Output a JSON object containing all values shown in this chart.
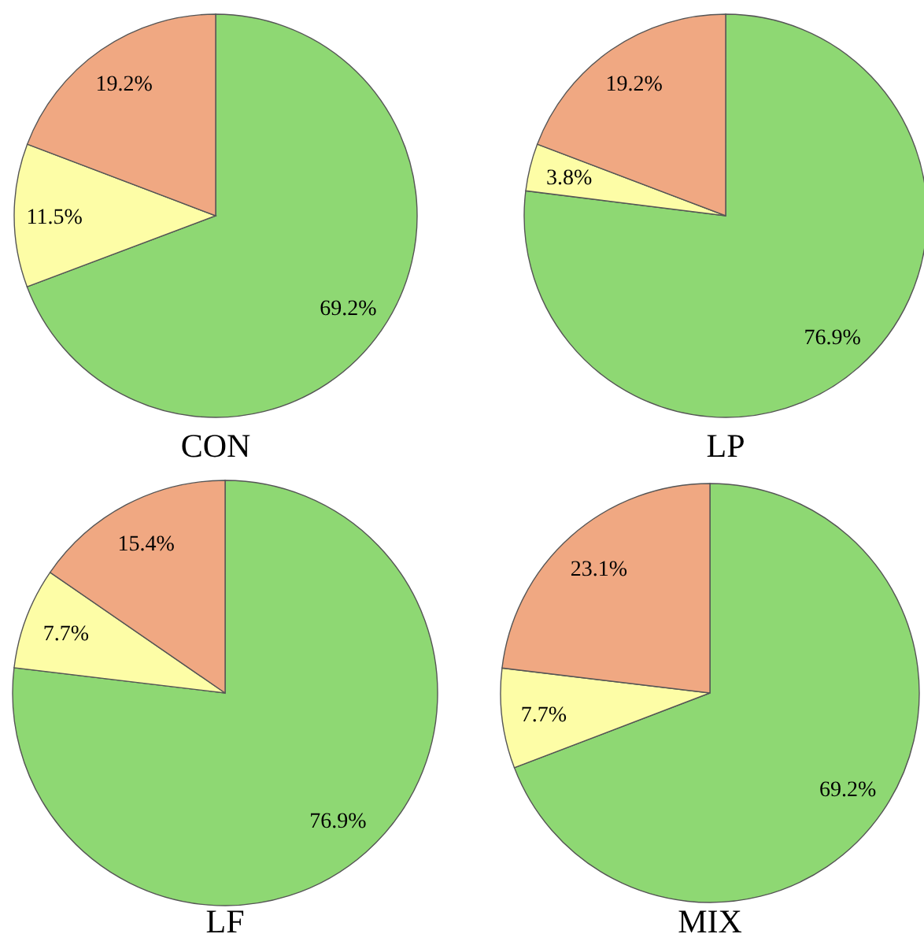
{
  "chart_data": [
    {
      "type": "pie",
      "title": "CON",
      "categories": [
        null,
        null,
        null
      ],
      "values": [
        69.2,
        11.5,
        19.2
      ],
      "colors": [
        "#8ed873",
        "#fdfda6",
        "#f0a882"
      ],
      "value_labels": [
        "69.2%",
        "11.5%",
        "19.2%"
      ]
    },
    {
      "type": "pie",
      "title": "LP",
      "categories": [
        null,
        null,
        null
      ],
      "values": [
        76.9,
        3.8,
        19.2
      ],
      "colors": [
        "#8ed873",
        "#fdfda6",
        "#f0a882"
      ],
      "value_labels": [
        "76.9%",
        "3.8%",
        "19.2%"
      ]
    },
    {
      "type": "pie",
      "title": "LF",
      "categories": [
        null,
        null,
        null
      ],
      "values": [
        76.9,
        7.7,
        15.4
      ],
      "colors": [
        "#8ed873",
        "#fdfda6",
        "#f0a882"
      ],
      "value_labels": [
        "76.9%",
        "7.7%",
        "15.4%"
      ]
    },
    {
      "type": "pie",
      "title": "MIX",
      "categories": [
        null,
        null,
        null
      ],
      "values": [
        69.2,
        7.7,
        23.1
      ],
      "colors": [
        "#8ed873",
        "#fdfda6",
        "#f0a882"
      ],
      "value_labels": [
        "69.2%",
        "7.7%",
        "23.1%"
      ]
    }
  ]
}
